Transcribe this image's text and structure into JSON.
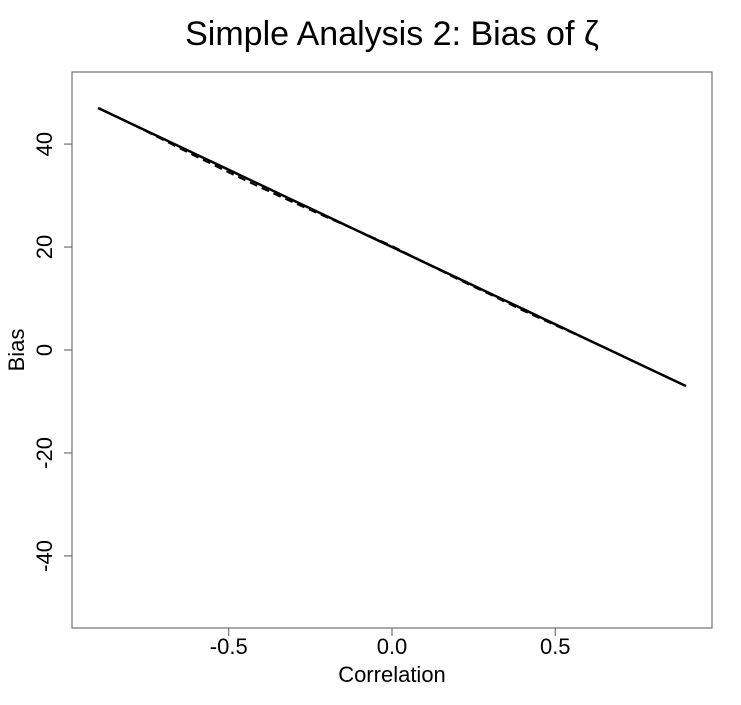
{
  "chart_data": {
    "type": "line",
    "title": "Simple Analysis 2: Bias of ζ",
    "x_label": "Correlation",
    "y_label": "Bias",
    "x": [
      -0.9,
      -0.8,
      -0.7,
      -0.6,
      -0.5,
      -0.4,
      -0.3,
      -0.2,
      -0.1,
      0,
      0.1,
      0.2,
      0.3,
      0.4,
      0.5,
      0.6,
      0.7,
      0.8,
      0.9
    ],
    "series": [
      {
        "color": "#000000",
        "dash": "solid",
        "values": [
          47,
          44,
          41,
          38,
          35,
          32,
          29,
          26,
          23,
          20,
          17,
          14,
          11,
          8,
          5,
          2,
          -1,
          -4,
          -7
        ]
      },
      {
        "color": "#000000",
        "dash": "dashed",
        "values": [
          47,
          44,
          40.8,
          37.6,
          34.5,
          31.5,
          28.6,
          25.8,
          23,
          20.2,
          17,
          13.8,
          10.8,
          7.7,
          4.8,
          2,
          -1,
          -4,
          -7
        ]
      }
    ],
    "xlim": [
      -0.98,
      0.98
    ],
    "ylim": [
      -54,
      54
    ],
    "xticks": [
      -0.5,
      {
        "value": 0,
        "label": "0.0"
      },
      0.5
    ],
    "yticks": [
      -40,
      -20,
      0,
      20,
      40
    ]
  }
}
